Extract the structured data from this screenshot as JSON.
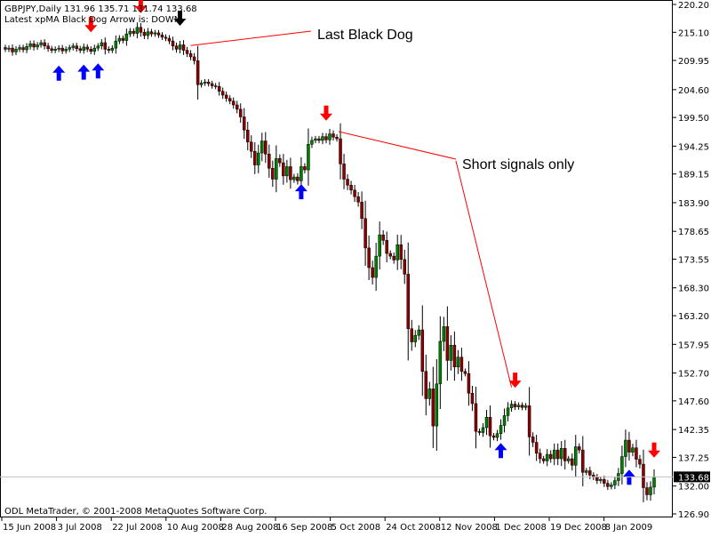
{
  "chart_data": {
    "type": "candlestick",
    "symbol_line": "GBPJPY,Daily  131.96 135.71 131.74 133.68",
    "indicator_line": "Latest xpMA Black Dog Arrow is:  DOWN",
    "footer": "ODL MetaTrader, © 2001-2008 MetaQuotes Software Corp.",
    "ylim": [
      126.9,
      220.2
    ],
    "y_ticks": [
      220.2,
      215.1,
      209.95,
      204.6,
      199.5,
      194.25,
      189.15,
      183.9,
      178.65,
      173.55,
      168.3,
      163.2,
      157.95,
      152.7,
      147.6,
      142.35,
      137.25,
      132.0,
      126.9
    ],
    "y_tick_labels": [
      "220.20",
      "215.10",
      "209.95",
      "204.60",
      "199.50",
      "194.25",
      "189.15",
      "183.90",
      "178.65",
      "173.55",
      "168.30",
      "163.20",
      "157.95",
      "152.70",
      "147.60",
      "142.35",
      "137.25",
      "132.00",
      "126.90"
    ],
    "x_tick_labels": [
      "15 Jun 2008",
      "3 Jul 2008",
      "22 Jul 2008",
      "10 Aug 2008",
      "28 Aug 2008",
      "16 Sep 2008",
      "5 Oct 2008",
      "24 Oct 2008",
      "12 Nov 2008",
      "1 Dec 2008",
      "19 Dec 2008",
      "8 Jan 2009"
    ],
    "current_price": 133.68,
    "current_price_label": "133.68",
    "close": [
      212.0,
      212.2,
      211.5,
      212.0,
      212.3,
      211.9,
      212.5,
      213.0,
      212.4,
      212.8,
      213.2,
      212.6,
      212.1,
      211.8,
      212.0,
      212.2,
      211.7,
      212.0,
      212.3,
      212.6,
      212.1,
      211.8,
      212.4,
      212.0,
      211.6,
      212.2,
      212.6,
      213.2,
      212.0,
      211.8,
      212.2,
      213.5,
      214.0,
      213.6,
      214.8,
      215.3,
      214.9,
      216.0,
      215.1,
      214.5,
      215.2,
      214.8,
      215.0,
      214.6,
      214.2,
      214.0,
      213.5,
      212.6,
      212.0,
      212.8,
      211.8,
      211.2,
      210.6,
      209.9,
      205.5,
      205.8,
      206.0,
      205.7,
      205.3,
      205.2,
      204.3,
      203.6,
      203.0,
      202.5,
      201.8,
      201.0,
      199.6,
      197.2,
      195.0,
      193.3,
      190.8,
      193.0,
      195.2,
      192.8,
      190.2,
      188.2,
      192.0,
      191.2,
      188.8,
      190.5,
      188.1,
      188.6,
      187.9,
      190.5,
      189.9,
      194.6,
      195.3,
      195.6,
      195.3,
      196.0,
      195.4,
      196.5,
      195.9,
      195.6,
      191.0,
      188.2,
      187.1,
      186.2,
      185.0,
      184.0,
      181.0,
      175.6,
      172.0,
      170.2,
      174.1,
      178.0,
      177.0,
      174.6,
      174.1,
      173.4,
      176.2,
      173.5,
      170.8,
      160.8,
      158.4,
      159.6,
      160.6,
      153.0,
      148.0,
      149.8,
      143.0,
      150.7,
      158.5,
      161.2,
      155.0,
      157.8,
      153.8,
      155.6,
      153.0,
      152.6,
      149.0,
      147.1,
      142.0,
      141.8,
      142.7,
      144.6,
      141.2,
      140.9,
      141.6,
      143.1,
      144.9,
      146.3,
      147.0,
      146.5,
      146.8,
      146.4,
      146.7,
      141.0,
      140.0,
      138.0,
      137.0,
      136.6,
      137.8,
      137.0,
      138.6,
      137.0,
      138.9,
      136.6,
      137.0,
      135.8,
      139.2,
      138.6,
      134.5,
      134.8,
      134.0,
      133.6,
      133.0,
      133.2,
      132.5,
      131.9,
      132.2,
      133.0,
      134.3,
      137.4,
      140.4,
      138.2,
      139.0,
      136.9,
      136.0,
      131.7,
      130.4,
      131.8,
      133.7
    ],
    "signals": [
      {
        "type": "up",
        "bar": 15,
        "color": "#0000ff"
      },
      {
        "type": "up",
        "bar": 22,
        "color": "#0000ff"
      },
      {
        "type": "down",
        "bar": 24,
        "color": "#ff0000"
      },
      {
        "type": "up",
        "bar": 26,
        "color": "#0000ff"
      },
      {
        "type": "down",
        "bar": 38,
        "color": "#ff0000"
      },
      {
        "type": "down",
        "bar": 49,
        "color": "#000000"
      },
      {
        "type": "up",
        "bar": 83,
        "color": "#0000ff"
      },
      {
        "type": "down",
        "bar": 90,
        "color": "#ff0000"
      },
      {
        "type": "down",
        "bar": 143,
        "color": "#ff0000"
      },
      {
        "type": "up",
        "bar": 139,
        "color": "#0000ff"
      },
      {
        "type": "up",
        "bar": 175,
        "color": "#0000ff"
      },
      {
        "type": "down",
        "bar": 182,
        "color": "#ff0000"
      }
    ],
    "annotations": [
      {
        "id": "last-black-dog",
        "text": "Last Black Dog",
        "target_bar": 49,
        "target_price": 213.0
      },
      {
        "id": "short-signals-only",
        "text": "Short signals only",
        "targets": [
          {
            "bar": 90,
            "price": 196.6
          },
          {
            "bar": 143,
            "price": 149.6
          }
        ]
      }
    ],
    "grid": false,
    "bull_color": "#008000",
    "bear_color": "#8b0000",
    "wick_color": "#000000"
  }
}
